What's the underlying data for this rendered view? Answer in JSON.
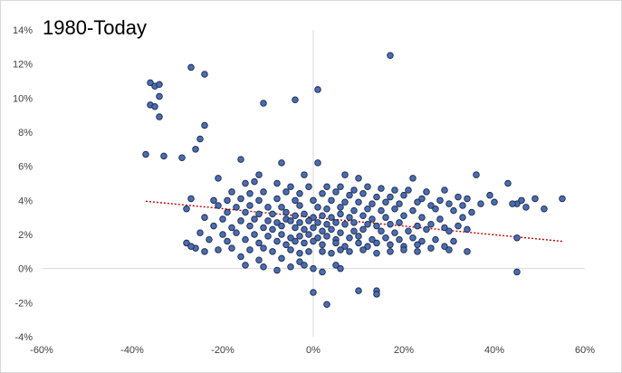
{
  "chart_data": {
    "type": "scatter",
    "title": "1980-Today",
    "xlabel": "",
    "ylabel": "",
    "xlim": [
      -60,
      60
    ],
    "ylim": [
      -4,
      14
    ],
    "x_ticks": [
      "-60%",
      "-40%",
      "-20%",
      "0%",
      "20%",
      "40%",
      "60%"
    ],
    "y_ticks": [
      "-4%",
      "-2%",
      "0%",
      "2%",
      "4%",
      "6%",
      "8%",
      "10%",
      "12%",
      "14%"
    ],
    "grid": false,
    "legend": "none",
    "colors": {
      "marker_fill": "#4a6cb3",
      "marker_edge": "#1c2a44",
      "trendline": "#c00000",
      "axis": "#d9d9d9"
    },
    "trendline": {
      "style": "dotted",
      "x": [
        -37,
        55
      ],
      "y": [
        3.95,
        1.6
      ]
    },
    "series": [
      {
        "points": [
          [
            -36,
            10.9
          ],
          [
            -35,
            10.7
          ],
          [
            -34,
            10.8
          ],
          [
            -34,
            10.1
          ],
          [
            -36,
            9.6
          ],
          [
            -35,
            9.5
          ],
          [
            -34,
            8.9
          ],
          [
            -27,
            11.8
          ],
          [
            -24,
            11.4
          ],
          [
            -24,
            8.4
          ],
          [
            -25,
            7.6
          ],
          [
            -26,
            7.0
          ],
          [
            -37,
            6.7
          ],
          [
            -33,
            6.6
          ],
          [
            -29,
            6.5
          ],
          [
            -11,
            9.7
          ],
          [
            -4,
            9.9
          ],
          [
            1,
            10.5
          ],
          [
            17,
            12.5
          ],
          [
            -16,
            6.4
          ],
          [
            -7,
            6.2
          ],
          [
            1,
            6.2
          ],
          [
            -12,
            5.5
          ],
          [
            -2,
            5.5
          ],
          [
            7,
            5.5
          ],
          [
            -21,
            5.3
          ],
          [
            10,
            5.3
          ],
          [
            22,
            5.3
          ],
          [
            36,
            5.5
          ],
          [
            -15,
            5.0
          ],
          [
            -13,
            5.1
          ],
          [
            -8,
            5.0
          ],
          [
            -5,
            4.8
          ],
          [
            -1,
            4.8
          ],
          [
            3,
            4.8
          ],
          [
            6,
            4.8
          ],
          [
            9,
            4.6
          ],
          [
            12,
            4.8
          ],
          [
            15,
            4.7
          ],
          [
            18,
            4.6
          ],
          [
            21,
            4.6
          ],
          [
            25,
            4.5
          ],
          [
            29,
            4.6
          ],
          [
            39,
            4.3
          ],
          [
            43,
            5.0
          ],
          [
            -18,
            4.5
          ],
          [
            -14,
            4.4
          ],
          [
            -11,
            4.5
          ],
          [
            -6,
            4.5
          ],
          [
            -3,
            4.4
          ],
          [
            2,
            4.4
          ],
          [
            5,
            4.5
          ],
          [
            8,
            4.3
          ],
          [
            11,
            4.4
          ],
          [
            14,
            4.2
          ],
          [
            17,
            4.2
          ],
          [
            20,
            4.3
          ],
          [
            24,
            4.1
          ],
          [
            28,
            4.0
          ],
          [
            32,
            4.2
          ],
          [
            34,
            4.1
          ],
          [
            -27,
            4.1
          ],
          [
            -22,
            4.0
          ],
          [
            -19,
            4.0
          ],
          [
            -16,
            4.1
          ],
          [
            -12,
            4.0
          ],
          [
            -8,
            4.1
          ],
          [
            -4,
            4.0
          ],
          [
            0,
            4.0
          ],
          [
            4,
            4.0
          ],
          [
            7,
            3.9
          ],
          [
            10,
            3.9
          ],
          [
            13,
            3.8
          ],
          [
            16,
            3.9
          ],
          [
            19,
            3.8
          ],
          [
            23,
            3.9
          ],
          [
            26,
            3.7
          ],
          [
            30,
            3.8
          ],
          [
            33,
            3.7
          ],
          [
            37,
            3.8
          ],
          [
            40,
            3.9
          ],
          [
            45,
            3.8
          ],
          [
            46,
            4.0
          ],
          [
            49,
            4.1
          ],
          [
            55,
            4.1
          ],
          [
            -21,
            3.7
          ],
          [
            -17,
            3.6
          ],
          [
            -14,
            3.7
          ],
          [
            -10,
            3.6
          ],
          [
            -7,
            3.6
          ],
          [
            -3,
            3.7
          ],
          [
            1,
            3.6
          ],
          [
            3,
            3.5
          ],
          [
            6,
            3.6
          ],
          [
            9,
            3.4
          ],
          [
            12,
            3.5
          ],
          [
            15,
            3.4
          ],
          [
            18,
            3.5
          ],
          [
            22,
            3.4
          ],
          [
            27,
            3.5
          ],
          [
            31,
            3.4
          ],
          [
            35,
            3.3
          ],
          [
            44,
            3.8
          ],
          [
            47,
            3.6
          ],
          [
            51,
            3.5
          ],
          [
            -28,
            3.5
          ],
          [
            -19,
            3.3
          ],
          [
            -15,
            3.3
          ],
          [
            -12,
            3.2
          ],
          [
            -9,
            3.2
          ],
          [
            -6,
            3.3
          ],
          [
            -4,
            3.1
          ],
          [
            -2,
            3.2
          ],
          [
            0,
            3.0
          ],
          [
            2,
            3.1
          ],
          [
            4,
            3.0
          ],
          [
            6,
            3.2
          ],
          [
            8,
            3.0
          ],
          [
            11,
            3.1
          ],
          [
            13,
            2.9
          ],
          [
            16,
            3.0
          ],
          [
            20,
            3.1
          ],
          [
            24,
            3.0
          ],
          [
            28,
            2.9
          ],
          [
            33,
            3.0
          ],
          [
            -24,
            3.0
          ],
          [
            -20,
            2.9
          ],
          [
            -16,
            2.8
          ],
          [
            -13,
            2.9
          ],
          [
            -10,
            2.8
          ],
          [
            -8,
            2.7
          ],
          [
            -6,
            2.9
          ],
          [
            -5,
            2.8
          ],
          [
            -3,
            2.7
          ],
          [
            -1,
            2.8
          ],
          [
            1,
            2.7
          ],
          [
            3,
            2.6
          ],
          [
            5,
            2.7
          ],
          [
            7,
            2.6
          ],
          [
            9,
            2.7
          ],
          [
            12,
            2.6
          ],
          [
            14,
            2.5
          ],
          [
            17,
            2.6
          ],
          [
            19,
            2.7
          ],
          [
            23,
            2.5
          ],
          [
            26,
            2.6
          ],
          [
            29,
            2.4
          ],
          [
            32,
            2.5
          ],
          [
            -22,
            2.5
          ],
          [
            -18,
            2.4
          ],
          [
            -14,
            2.5
          ],
          [
            -11,
            2.4
          ],
          [
            -9,
            2.3
          ],
          [
            -7,
            2.5
          ],
          [
            -4,
            2.4
          ],
          [
            -2,
            2.3
          ],
          [
            0,
            2.4
          ],
          [
            2,
            2.2
          ],
          [
            4,
            2.3
          ],
          [
            6,
            2.1
          ],
          [
            9,
            2.2
          ],
          [
            11,
            2.3
          ],
          [
            15,
            2.2
          ],
          [
            18,
            2.1
          ],
          [
            21,
            2.2
          ],
          [
            25,
            2.3
          ],
          [
            30,
            2.2
          ],
          [
            34,
            2.3
          ],
          [
            -25,
            2.1
          ],
          [
            -20,
            2.0
          ],
          [
            -17,
            2.1
          ],
          [
            -13,
            2.0
          ],
          [
            -10,
            1.9
          ],
          [
            -7,
            2.0
          ],
          [
            -5,
            1.8
          ],
          [
            -3,
            1.9
          ],
          [
            -1,
            2.0
          ],
          [
            1,
            1.8
          ],
          [
            3,
            1.9
          ],
          [
            5,
            1.7
          ],
          [
            8,
            1.8
          ],
          [
            10,
            1.9
          ],
          [
            13,
            1.7
          ],
          [
            16,
            1.8
          ],
          [
            19,
            1.7
          ],
          [
            22,
            1.8
          ],
          [
            24,
            1.6
          ],
          [
            27,
            1.7
          ],
          [
            31,
            1.6
          ],
          [
            45,
            1.8
          ],
          [
            -23,
            1.7
          ],
          [
            -19,
            1.6
          ],
          [
            -15,
            1.7
          ],
          [
            -12,
            1.5
          ],
          [
            -8,
            1.6
          ],
          [
            -6,
            1.4
          ],
          [
            -4,
            1.6
          ],
          [
            -2,
            1.5
          ],
          [
            0,
            1.6
          ],
          [
            2,
            1.4
          ],
          [
            5,
            1.5
          ],
          [
            7,
            1.3
          ],
          [
            10,
            1.5
          ],
          [
            12,
            1.3
          ],
          [
            14,
            1.5
          ],
          [
            17,
            1.4
          ],
          [
            20,
            1.3
          ],
          [
            23,
            1.4
          ],
          [
            26,
            1.2
          ],
          [
            29,
            1.3
          ],
          [
            -28,
            1.5
          ],
          [
            -26,
            1.2
          ],
          [
            -24,
            1.0
          ],
          [
            -21,
            1.1
          ],
          [
            -18,
            1.2
          ],
          [
            -14,
            1.1
          ],
          [
            -11,
            1.2
          ],
          [
            -9,
            1.0
          ],
          [
            -5,
            1.1
          ],
          [
            -3,
            0.9
          ],
          [
            -1,
            1.0
          ],
          [
            2,
            1.0
          ],
          [
            4,
            0.9
          ],
          [
            6,
            1.1
          ],
          [
            8,
            1.0
          ],
          [
            11,
            1.1
          ],
          [
            14,
            0.9
          ],
          [
            17,
            1.0
          ],
          [
            20,
            1.1
          ],
          [
            23,
            1.0
          ],
          [
            30,
            1.1
          ],
          [
            34,
            1.0
          ],
          [
            -27,
            1.3
          ],
          [
            -16,
            0.7
          ],
          [
            -12,
            0.5
          ],
          [
            -7,
            0.6
          ],
          [
            -3,
            0.4
          ],
          [
            -15,
            0.2
          ],
          [
            -11,
            0.1
          ],
          [
            -8,
            -0.1
          ],
          [
            -5,
            0.1
          ],
          [
            -2,
            0.2
          ],
          [
            0,
            0.0
          ],
          [
            2,
            -0.2
          ],
          [
            5,
            0.2
          ],
          [
            6,
            0.0
          ],
          [
            45,
            -0.2
          ],
          [
            0,
            -1.4
          ],
          [
            3,
            -2.1
          ],
          [
            10,
            -1.3
          ],
          [
            14,
            -1.3
          ],
          [
            14,
            -1.5
          ]
        ]
      }
    ]
  }
}
